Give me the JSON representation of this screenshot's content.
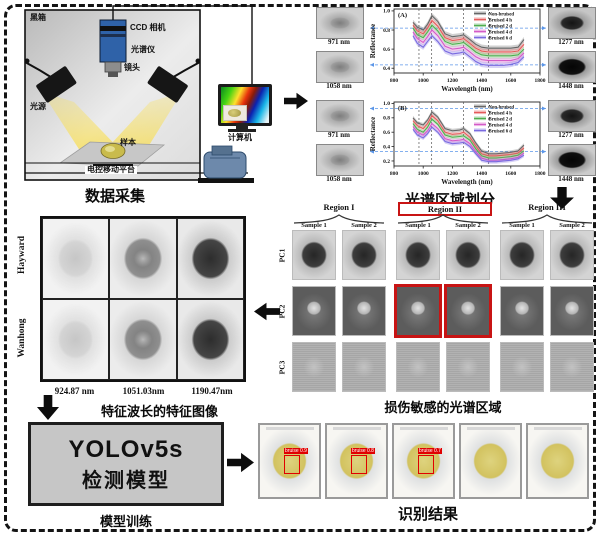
{
  "acquisition": {
    "caption": "数据采集",
    "labels": {
      "black_box": "黑箱",
      "ccd_camera": "CCD 相机",
      "spectrometer": "光谱仪",
      "lens": "镜头",
      "light_source": "光源",
      "sample": "样本",
      "stage": "电控移动平台",
      "computer": "计算机"
    }
  },
  "spectra": {
    "caption": "光谱区域划分",
    "panels": [
      {
        "tag": "(A)",
        "left_images": [
          "971 nm",
          "1058 nm"
        ],
        "right_images": [
          "1277 nm",
          "1448 nm"
        ]
      },
      {
        "tag": "(B)",
        "left_images": [
          "971 nm",
          "1058 nm"
        ],
        "right_images": [
          "1277 nm",
          "1448 nm"
        ]
      }
    ]
  },
  "chart_data": [
    {
      "type": "line",
      "panel": "(A)",
      "title": "",
      "xlabel": "Wavelength (nm)",
      "ylabel": "Reflectance",
      "xlim": [
        800,
        1800
      ],
      "ylim": [
        0.35,
        1.02
      ],
      "xticks": [
        800,
        1000,
        1200,
        1400,
        1600,
        1800
      ],
      "yticks": [
        0.4,
        0.6,
        0.8,
        1.0
      ],
      "marked_wavelengths": [
        971,
        1058,
        1277,
        1448
      ],
      "guide_y": [
        0.82,
        0.435
      ],
      "legend_position": "upper right",
      "band_halfwidth": 0.028,
      "x": [
        930,
        960,
        1000,
        1030,
        1060,
        1100,
        1150,
        1200,
        1250,
        1277,
        1320,
        1360,
        1400,
        1450,
        1500,
        1550,
        1600,
        1650,
        1690
      ],
      "series": [
        {
          "name": "Non-bruised",
          "color": "#666666",
          "values": [
            0.88,
            0.83,
            0.8,
            0.86,
            0.95,
            0.89,
            0.76,
            0.73,
            0.74,
            0.75,
            0.7,
            0.65,
            0.62,
            0.61,
            0.61,
            0.61,
            0.61,
            0.62,
            0.7
          ]
        },
        {
          "name": "Bruised 4 h",
          "color": "#e45b5b",
          "values": [
            0.85,
            0.79,
            0.76,
            0.82,
            0.9,
            0.84,
            0.72,
            0.69,
            0.7,
            0.71,
            0.66,
            0.61,
            0.58,
            0.57,
            0.57,
            0.57,
            0.57,
            0.58,
            0.65
          ]
        },
        {
          "name": "Bruised 2 d",
          "color": "#4fae4f",
          "values": [
            0.82,
            0.75,
            0.72,
            0.78,
            0.85,
            0.79,
            0.68,
            0.65,
            0.66,
            0.67,
            0.62,
            0.57,
            0.54,
            0.53,
            0.53,
            0.53,
            0.53,
            0.54,
            0.6
          ]
        },
        {
          "name": "Bruised 4 d",
          "color": "#d45bc8",
          "values": [
            0.78,
            0.71,
            0.67,
            0.73,
            0.8,
            0.74,
            0.63,
            0.6,
            0.61,
            0.62,
            0.57,
            0.52,
            0.49,
            0.48,
            0.48,
            0.48,
            0.48,
            0.5,
            0.56
          ]
        },
        {
          "name": "Bruised 6 d",
          "color": "#7a6ae0",
          "values": [
            0.74,
            0.66,
            0.62,
            0.68,
            0.74,
            0.68,
            0.58,
            0.55,
            0.56,
            0.57,
            0.52,
            0.47,
            0.44,
            0.43,
            0.43,
            0.43,
            0.44,
            0.46,
            0.52
          ]
        }
      ]
    },
    {
      "type": "line",
      "panel": "(B)",
      "title": "",
      "xlabel": "Wavelength (nm)",
      "ylabel": "Reflectance",
      "xlim": [
        800,
        1800
      ],
      "ylim": [
        0.13,
        1.02
      ],
      "xticks": [
        800,
        1000,
        1200,
        1400,
        1600,
        1800
      ],
      "yticks": [
        0.2,
        0.4,
        0.6,
        0.8,
        1.0
      ],
      "marked_wavelengths": [
        971,
        1058,
        1277,
        1448
      ],
      "guide_y": [
        0.93,
        0.33
      ],
      "legend_position": "upper right",
      "band_halfwidth": 0.028,
      "x": [
        930,
        960,
        1000,
        1030,
        1060,
        1100,
        1150,
        1200,
        1250,
        1277,
        1320,
        1360,
        1400,
        1450,
        1500,
        1550,
        1600,
        1650,
        1690
      ],
      "series": [
        {
          "name": "Non-bruised",
          "color": "#666666",
          "values": [
            0.8,
            0.73,
            0.7,
            0.77,
            0.88,
            0.81,
            0.65,
            0.62,
            0.63,
            0.65,
            0.58,
            0.45,
            0.34,
            0.3,
            0.3,
            0.31,
            0.32,
            0.34,
            0.42
          ]
        },
        {
          "name": "Bruised 4 h",
          "color": "#e45b5b",
          "values": [
            0.76,
            0.69,
            0.65,
            0.72,
            0.83,
            0.76,
            0.6,
            0.57,
            0.58,
            0.6,
            0.53,
            0.41,
            0.3,
            0.27,
            0.27,
            0.28,
            0.29,
            0.31,
            0.38
          ]
        },
        {
          "name": "Bruised 2 d",
          "color": "#4fae4f",
          "values": [
            0.72,
            0.64,
            0.6,
            0.67,
            0.78,
            0.71,
            0.56,
            0.53,
            0.54,
            0.55,
            0.49,
            0.37,
            0.27,
            0.24,
            0.24,
            0.25,
            0.26,
            0.28,
            0.34
          ]
        },
        {
          "name": "Bruised 4 d",
          "color": "#d45bc8",
          "values": [
            0.68,
            0.6,
            0.56,
            0.62,
            0.72,
            0.65,
            0.51,
            0.48,
            0.49,
            0.5,
            0.44,
            0.33,
            0.24,
            0.21,
            0.21,
            0.22,
            0.23,
            0.25,
            0.31
          ]
        },
        {
          "name": "Bruised 6 d",
          "color": "#7a6ae0",
          "values": [
            0.64,
            0.56,
            0.52,
            0.58,
            0.67,
            0.6,
            0.47,
            0.44,
            0.45,
            0.46,
            0.4,
            0.3,
            0.21,
            0.19,
            0.19,
            0.2,
            0.21,
            0.23,
            0.28
          ]
        }
      ]
    }
  ],
  "regions": {
    "caption": "损伤敏感的光谱区域",
    "groups": [
      "Region I",
      "Region II",
      "Region III"
    ],
    "highlighted_group": "Region II",
    "samples": [
      "Sample 1",
      "Sample 2"
    ],
    "rows": [
      "PC1",
      "PC2",
      "PC3"
    ],
    "highlight_cells": [
      [
        1,
        2
      ],
      [
        1,
        3
      ]
    ],
    "highlight_color": "#c81414"
  },
  "feature_images": {
    "caption": "特征波长的特征图像",
    "row_labels": [
      "Hayward",
      "Wanhong"
    ],
    "wavelengths": [
      "924.87 nm",
      "1051.03nm",
      "1190.47nm"
    ]
  },
  "model": {
    "line1": "YOLOv5s",
    "line2": "检测模型",
    "caption": "模型训练"
  },
  "results": {
    "caption": "识别结果",
    "items": [
      {
        "detection": "bruise 0.9"
      },
      {
        "detection": "bruise 0.8"
      },
      {
        "detection": "bruise 0.7"
      },
      {
        "detection": null
      },
      {
        "detection": null
      }
    ]
  }
}
